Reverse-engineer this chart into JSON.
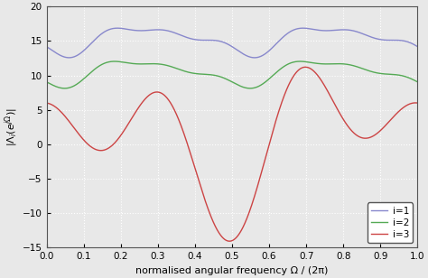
{
  "xlabel": "normalised angular frequency Ω / (2π)",
  "ylabel": "|Λ_i(e^{jΩ})|",
  "xlim": [
    0,
    1
  ],
  "ylim": [
    -15,
    20
  ],
  "yticks": [
    -15,
    -10,
    -5,
    0,
    5,
    10,
    15,
    20
  ],
  "xticks": [
    0,
    0.1,
    0.2,
    0.3,
    0.4,
    0.5,
    0.6,
    0.7,
    0.8,
    0.9,
    1.0
  ],
  "colors": {
    "i1": "#8888cc",
    "i2": "#55aa55",
    "i3": "#cc4444"
  },
  "legend_labels": [
    "i=1",
    "i=2",
    "i=3"
  ],
  "bg_color": "#e8e8e8",
  "grid_color": "#ffffff",
  "n_points": 2000,
  "curve1": {
    "base": 15.3,
    "comps": [
      {
        "amp": 1.7,
        "freq": 2.0,
        "phase": 2.8
      },
      {
        "amp": 0.7,
        "freq": 4.0,
        "phase": 1.5
      },
      {
        "amp": 0.5,
        "freq": 6.0,
        "phase": 0.5
      }
    ]
  },
  "curve2": {
    "base": 10.5,
    "comps": [
      {
        "amp": 1.6,
        "freq": 2.0,
        "phase": 3.0
      },
      {
        "amp": 0.6,
        "freq": 4.0,
        "phase": 1.8
      },
      {
        "amp": 0.4,
        "freq": 6.0,
        "phase": 0.8
      }
    ]
  },
  "curve3": {
    "comps": [
      {
        "amp": 4.5,
        "freq": 3.0,
        "phase": 0.05
      },
      {
        "amp": 3.5,
        "freq": 1.0,
        "phase": 0.55
      },
      {
        "amp": 6.5,
        "freq": 5.0,
        "phase": 3.1
      }
    ]
  }
}
